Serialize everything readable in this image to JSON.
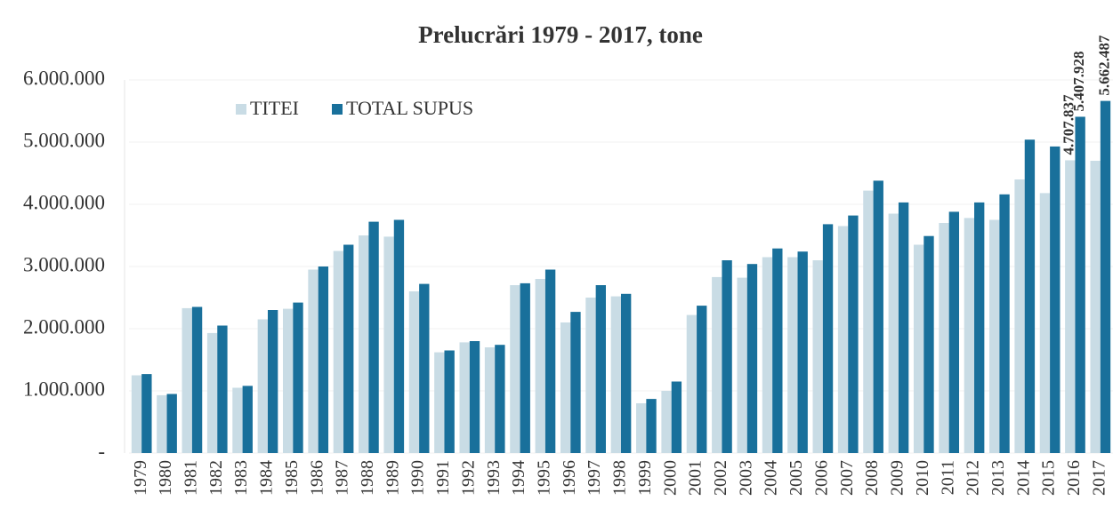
{
  "chart_data": {
    "type": "bar",
    "title": "Prelucrări  1979 - 2017, tone",
    "categories": [
      "1979",
      "1980",
      "1981",
      "1982",
      "1983",
      "1984",
      "1985",
      "1986",
      "1987",
      "1988",
      "1989",
      "1990",
      "1991",
      "1992",
      "1993",
      "1994",
      "1995",
      "1996",
      "1997",
      "1998",
      "1999",
      "2000",
      "2001",
      "2002",
      "2003",
      "2004",
      "2005",
      "2006",
      "2007",
      "2008",
      "2009",
      "2010",
      "2011",
      "2012",
      "2013",
      "2014",
      "2015",
      "2016",
      "2017"
    ],
    "series": [
      {
        "name": "TITEI",
        "color": "#c9dce5",
        "values": [
          1250000,
          930000,
          2330000,
          1930000,
          1050000,
          2150000,
          2320000,
          2950000,
          3250000,
          3500000,
          3480000,
          2600000,
          1620000,
          1780000,
          1700000,
          2700000,
          2800000,
          2100000,
          2500000,
          2520000,
          800000,
          1000000,
          2220000,
          2830000,
          2820000,
          3150000,
          3150000,
          3100000,
          3650000,
          4220000,
          3850000,
          3350000,
          3700000,
          3780000,
          3750000,
          4400000,
          4180000,
          4707837,
          4700000
        ],
        "value_labels": [
          null,
          null,
          null,
          null,
          null,
          null,
          null,
          null,
          null,
          null,
          null,
          null,
          null,
          null,
          null,
          null,
          null,
          null,
          null,
          null,
          null,
          null,
          null,
          null,
          null,
          null,
          null,
          null,
          null,
          null,
          null,
          null,
          null,
          null,
          null,
          null,
          null,
          "4.707.837",
          null
        ]
      },
      {
        "name": "TOTAL SUPUS",
        "color": "#19709b",
        "values": [
          1270000,
          950000,
          2350000,
          2050000,
          1080000,
          2300000,
          2420000,
          3000000,
          3350000,
          3720000,
          3750000,
          2720000,
          1650000,
          1800000,
          1740000,
          2730000,
          2950000,
          2270000,
          2700000,
          2560000,
          870000,
          1150000,
          2370000,
          3100000,
          3040000,
          3290000,
          3240000,
          3680000,
          3820000,
          4380000,
          4030000,
          3490000,
          3880000,
          4030000,
          4160000,
          5040000,
          4930000,
          5407928,
          5662487
        ],
        "value_labels": [
          null,
          null,
          null,
          null,
          null,
          null,
          null,
          null,
          null,
          null,
          null,
          null,
          null,
          null,
          null,
          null,
          null,
          null,
          null,
          null,
          null,
          null,
          null,
          null,
          null,
          null,
          null,
          null,
          null,
          null,
          null,
          null,
          null,
          null,
          null,
          null,
          null,
          "5.407.928",
          "5.662.487"
        ]
      }
    ],
    "ylim": [
      0,
      6000000
    ],
    "yticks": [
      {
        "value": 0,
        "label": "-"
      },
      {
        "value": 1000000,
        "label": "1.000.000"
      },
      {
        "value": 2000000,
        "label": "2.000.000"
      },
      {
        "value": 3000000,
        "label": "3.000.000"
      },
      {
        "value": 4000000,
        "label": "4.000.000"
      },
      {
        "value": 5000000,
        "label": "5.000.000"
      },
      {
        "value": 6000000,
        "label": "6.000.000"
      }
    ],
    "grid": true
  }
}
